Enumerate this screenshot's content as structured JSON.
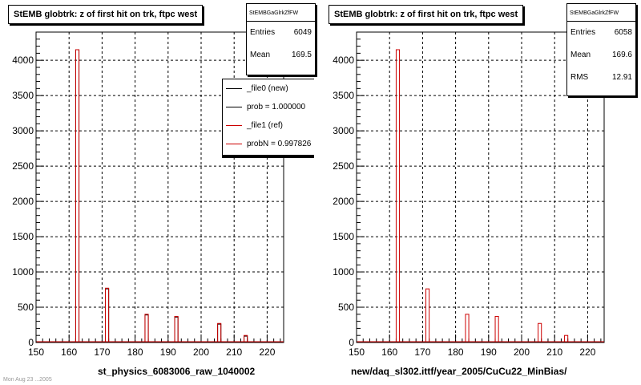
{
  "left_pad": {
    "title": "StEMB globtrk: z of first hit on trk, ftpc west",
    "stats": {
      "name": "StEMBGaGlrkZfFW",
      "entries_label": "Entries",
      "entries": "6049",
      "mean_label": "Mean",
      "mean": "169.5"
    },
    "legend": [
      {
        "label": "_file0 (new)",
        "color": "#000000"
      },
      {
        "label": "prob = 1.000000",
        "color": "#000000"
      },
      {
        "label": "_file1 (ref)",
        "color": "#cc0000"
      },
      {
        "label": "probN = 0.997826",
        "color": "#cc0000"
      }
    ],
    "xaxis_label": "st_physics_6083006_raw_1040002"
  },
  "right_pad": {
    "title": "StEMB globtrk: z of first hit on trk, ftpc west",
    "stats": {
      "name": "StEMBGaGlrkZfFW",
      "entries_label": "Entries",
      "entries": "6058",
      "mean_label": "Mean",
      "mean": "169.6",
      "rms_label": "RMS",
      "rms": "12.91"
    },
    "xaxis_label": "new/daq_sl302.ittf/year_2005/CuCu22_MinBias/"
  },
  "footer_stamp": "Mon Aug 23 ...2005",
  "chart_data": [
    {
      "type": "bar",
      "title": "StEMB globtrk: z of first hit on trk, ftpc west",
      "xlabel": "st_physics_6083006_raw_1040002",
      "ylabel": "",
      "xlim": [
        150,
        225
      ],
      "ylim": [
        0,
        4400
      ],
      "xticks": [
        150,
        160,
        170,
        180,
        190,
        200,
        210,
        220
      ],
      "yticks": [
        0,
        500,
        1000,
        1500,
        2000,
        2500,
        3000,
        3500,
        4000
      ],
      "grid": true,
      "series": [
        {
          "name": "_file0 (new)",
          "color": "#000000",
          "x": [
            162.5,
            171.5,
            183.5,
            192.5,
            205.5,
            213.5
          ],
          "values": [
            4150,
            760,
            390,
            360,
            260,
            90
          ]
        },
        {
          "name": "_file1 (ref)",
          "color": "#cc0000",
          "x": [
            162.5,
            171.5,
            183.5,
            192.5,
            205.5,
            213.5
          ],
          "values": [
            4150,
            770,
            400,
            370,
            270,
            100
          ]
        }
      ]
    },
    {
      "type": "bar",
      "title": "StEMB globtrk: z of first hit on trk, ftpc west",
      "xlabel": "new/daq_sl302.ittf/year_2005/CuCu22_MinBias/",
      "ylabel": "",
      "xlim": [
        150,
        225
      ],
      "ylim": [
        0,
        4400
      ],
      "xticks": [
        150,
        160,
        170,
        180,
        190,
        200,
        210,
        220
      ],
      "yticks": [
        0,
        500,
        1000,
        1500,
        2000,
        2500,
        3000,
        3500,
        4000
      ],
      "grid": true,
      "series": [
        {
          "name": "",
          "color": "#cc0000",
          "x": [
            162.5,
            171.5,
            183.5,
            192.5,
            205.5,
            213.5
          ],
          "values": [
            4150,
            760,
            400,
            370,
            270,
            100
          ]
        }
      ]
    }
  ]
}
